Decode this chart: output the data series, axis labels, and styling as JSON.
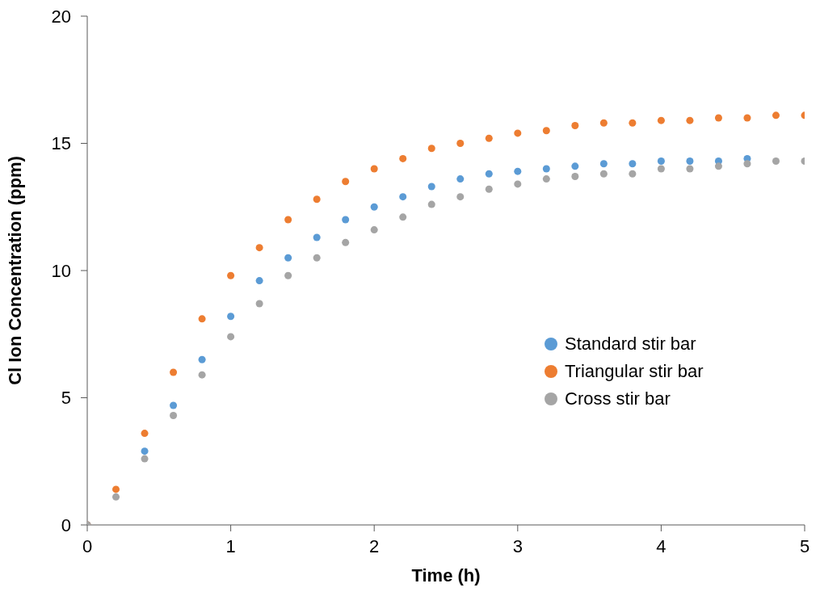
{
  "chart_data": {
    "type": "scatter",
    "xlabel": "Time (h)",
    "ylabel": "Cl Ion Concentration (ppm)",
    "x": [
      0,
      0.2,
      0.4,
      0.6,
      0.8,
      1,
      1.2,
      1.4,
      1.6,
      1.8,
      2,
      2.2,
      2.4,
      2.6,
      2.8,
      3,
      3.2,
      3.4,
      3.6,
      3.8,
      4,
      4.2,
      4.4,
      4.6,
      4.8,
      5
    ],
    "series": [
      {
        "name": "Standard stir bar",
        "color": "#5b9bd5",
        "values": [
          0,
          null,
          2.9,
          4.7,
          6.5,
          8.2,
          9.6,
          10.5,
          11.3,
          12.0,
          12.5,
          12.9,
          13.3,
          13.6,
          13.8,
          13.9,
          14.0,
          14.1,
          14.2,
          14.2,
          14.3,
          14.3,
          14.3,
          14.4,
          null,
          null
        ]
      },
      {
        "name": "Triangular stir bar",
        "color": "#ed7d31",
        "values": [
          0,
          1.4,
          3.6,
          6.0,
          8.1,
          9.8,
          10.9,
          12.0,
          12.8,
          13.5,
          14.0,
          14.4,
          14.8,
          15.0,
          15.2,
          15.4,
          15.5,
          15.7,
          15.8,
          15.8,
          15.9,
          15.9,
          16.0,
          16.0,
          16.1,
          16.1
        ]
      },
      {
        "name": "Cross stir bar",
        "color": "#a5a5a5",
        "values": [
          0,
          1.1,
          2.6,
          4.3,
          5.9,
          7.4,
          8.7,
          9.8,
          10.5,
          11.1,
          11.6,
          12.1,
          12.6,
          12.9,
          13.2,
          13.4,
          13.6,
          13.7,
          13.8,
          13.8,
          14.0,
          14.0,
          14.1,
          14.2,
          14.3,
          14.3
        ]
      }
    ],
    "xlim": [
      0,
      5
    ],
    "xticks": [
      0,
      1,
      2,
      3,
      4,
      5
    ],
    "ylim": [
      0,
      20
    ],
    "yticks": [
      0,
      5,
      10,
      15,
      20
    ],
    "grid": false,
    "legend": "right",
    "marker": "circle"
  }
}
